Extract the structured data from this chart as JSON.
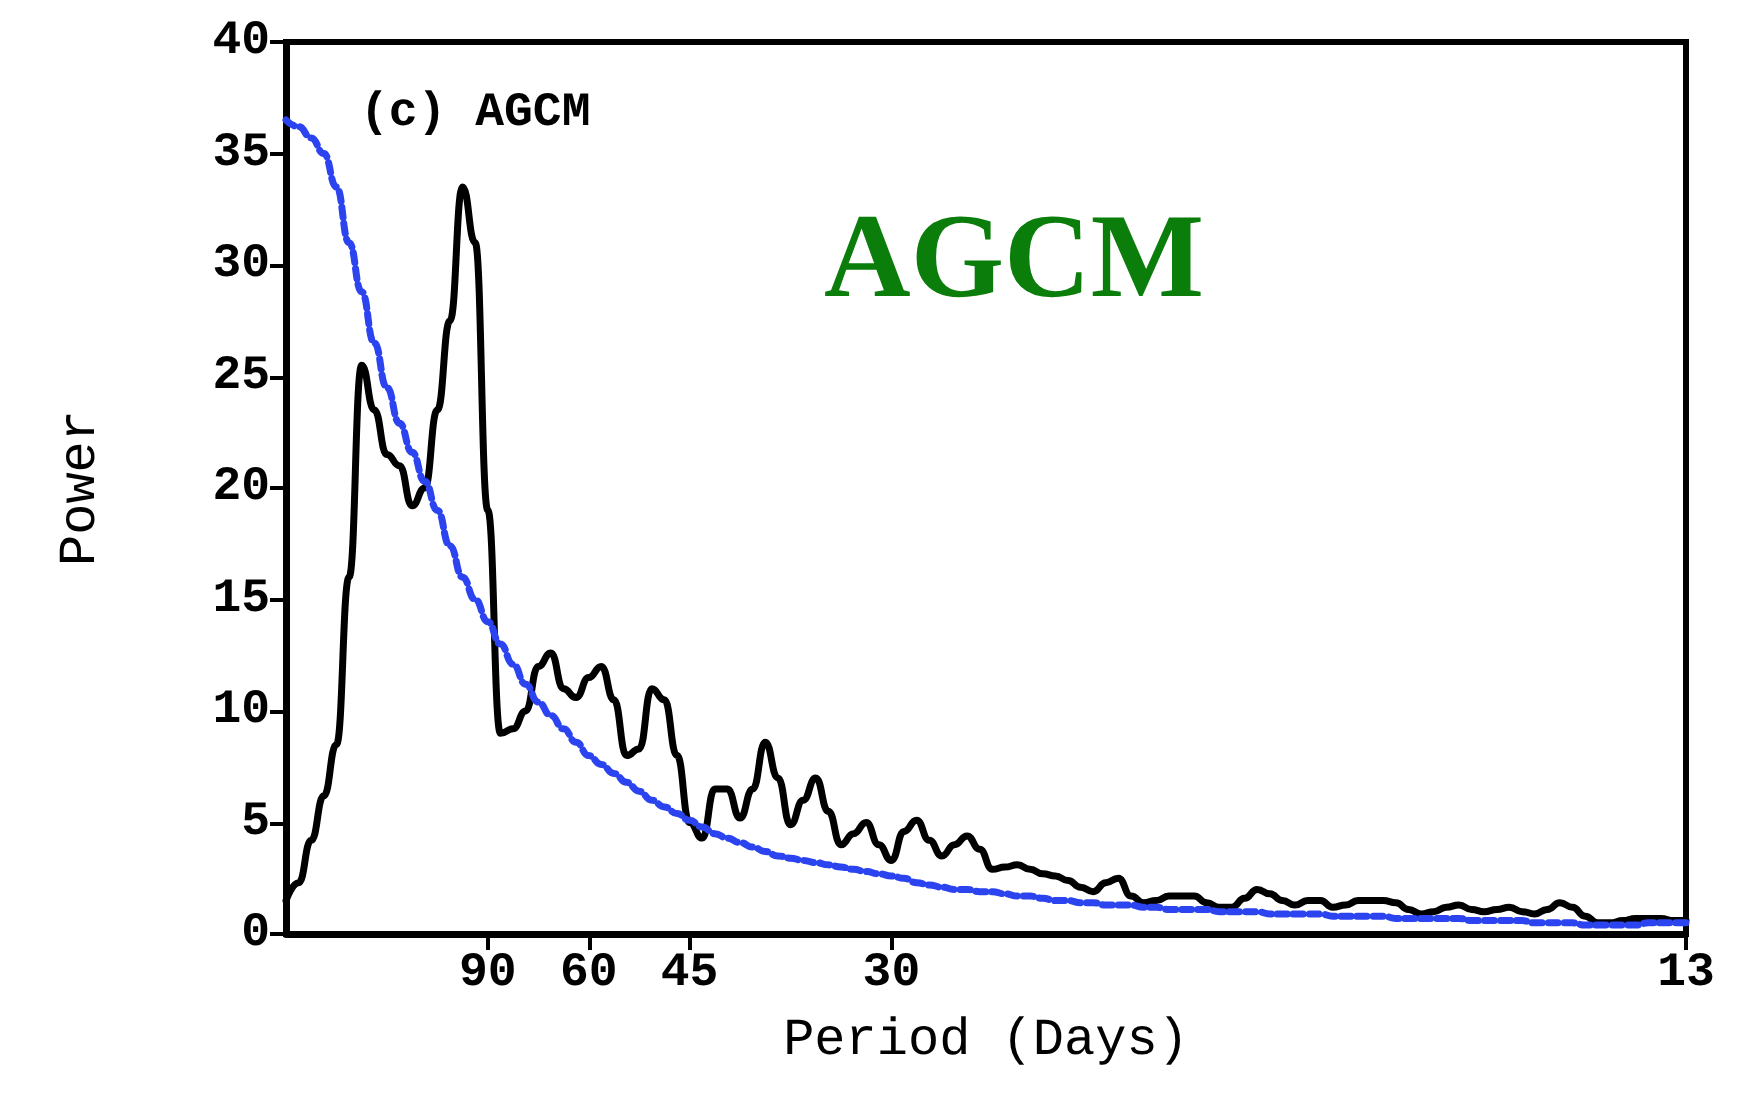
{
  "chart_data": {
    "type": "line",
    "xlabel": "Period (Days)",
    "ylabel": "Power",
    "annotations": [
      "(c) AGCM",
      "AGCM"
    ],
    "categories": [
      null,
      null,
      null,
      null,
      null,
      null,
      null,
      null,
      null,
      null,
      null,
      null,
      null,
      null,
      null,
      null,
      "90",
      null,
      null,
      null,
      null,
      null,
      null,
      null,
      "60",
      null,
      null,
      null,
      null,
      null,
      null,
      null,
      "45",
      null,
      null,
      null,
      null,
      null,
      null,
      null,
      null,
      null,
      null,
      null,
      null,
      null,
      null,
      null,
      "30",
      null,
      null,
      null,
      null,
      null,
      null,
      null,
      null,
      null,
      null,
      null,
      null,
      null,
      null,
      null,
      null,
      null,
      null,
      null,
      null,
      null,
      null,
      null,
      null,
      null,
      null,
      null,
      null,
      null,
      null,
      null,
      null,
      null,
      null,
      null,
      null,
      null,
      null,
      null,
      null,
      null,
      null,
      null,
      null,
      null,
      null,
      null,
      null,
      null,
      null,
      null,
      null,
      null,
      null,
      null,
      null,
      null,
      null,
      null,
      null,
      null,
      null,
      "13"
    ],
    "ylim": [
      0,
      40
    ],
    "yticks": [
      0,
      5,
      10,
      15,
      20,
      25,
      30,
      35,
      40
    ],
    "grid": false,
    "marker": "none",
    "series": [
      {
        "color": "#000000",
        "line_style": "solid",
        "values": [
          1.5,
          2.3,
          4.2,
          6.2,
          8.5,
          16,
          25.5,
          23.5,
          21.5,
          21,
          19.2,
          20,
          23.5,
          27.5,
          33.5,
          31,
          19,
          9,
          9.2,
          10,
          12,
          12.6,
          11,
          10.6,
          11.5,
          12,
          10.5,
          8,
          8.3,
          11,
          10.5,
          8,
          5,
          4.3,
          6.5,
          6.5,
          5.2,
          6.5,
          8.6,
          7,
          4.9,
          6,
          7,
          5.5,
          4,
          4.5,
          5,
          4,
          3.3,
          4.6,
          5.1,
          4.2,
          3.5,
          4,
          4.4,
          3.8,
          2.9,
          3,
          3.1,
          2.9,
          2.7,
          2.6,
          2.4,
          2.1,
          1.9,
          2.3,
          2.5,
          1.7,
          1.4,
          1.5,
          1.7,
          1.7,
          1.7,
          1.4,
          1.2,
          1.2,
          1.6,
          2,
          1.8,
          1.5,
          1.3,
          1.5,
          1.5,
          1.2,
          1.3,
          1.5,
          1.5,
          1.5,
          1.4,
          1.1,
          0.9,
          1,
          1.2,
          1.3,
          1.1,
          1,
          1.1,
          1.2,
          1,
          0.9,
          1.1,
          1.4,
          1.2,
          0.8,
          0.5,
          0.5,
          0.6,
          0.7,
          0.7,
          0.7,
          0.6,
          0.6
        ]
      },
      {
        "color": "#2b44f0",
        "line_style": "dashed",
        "values": [
          36.5,
          36.2,
          35.7,
          35,
          33.5,
          31,
          28.8,
          26.5,
          24.5,
          22.9,
          21.6,
          20.3,
          19,
          17.4,
          16,
          15,
          14,
          13,
          12.1,
          11.2,
          10.4,
          9.8,
          9.2,
          8.6,
          8,
          7.6,
          7.2,
          6.8,
          6.4,
          6,
          5.7,
          5.4,
          5.1,
          4.8,
          4.5,
          4.3,
          4.1,
          3.9,
          3.7,
          3.5,
          3.4,
          3.3,
          3.2,
          3.1,
          3,
          2.9,
          2.8,
          2.7,
          2.6,
          2.5,
          2.3,
          2.2,
          2.1,
          2,
          2,
          1.9,
          1.9,
          1.8,
          1.7,
          1.7,
          1.6,
          1.5,
          1.5,
          1.4,
          1.4,
          1.3,
          1.3,
          1.3,
          1.2,
          1.2,
          1.1,
          1.1,
          1.1,
          1.1,
          1,
          1,
          1,
          1,
          0.9,
          0.9,
          0.9,
          0.9,
          0.9,
          0.8,
          0.8,
          0.8,
          0.8,
          0.8,
          0.7,
          0.7,
          0.7,
          0.7,
          0.7,
          0.7,
          0.6,
          0.6,
          0.6,
          0.6,
          0.6,
          0.5,
          0.5,
          0.5,
          0.5,
          0.4,
          0.4,
          0.4,
          0.4,
          0.4,
          0.5,
          0.5,
          0.5,
          0.5
        ]
      }
    ]
  }
}
